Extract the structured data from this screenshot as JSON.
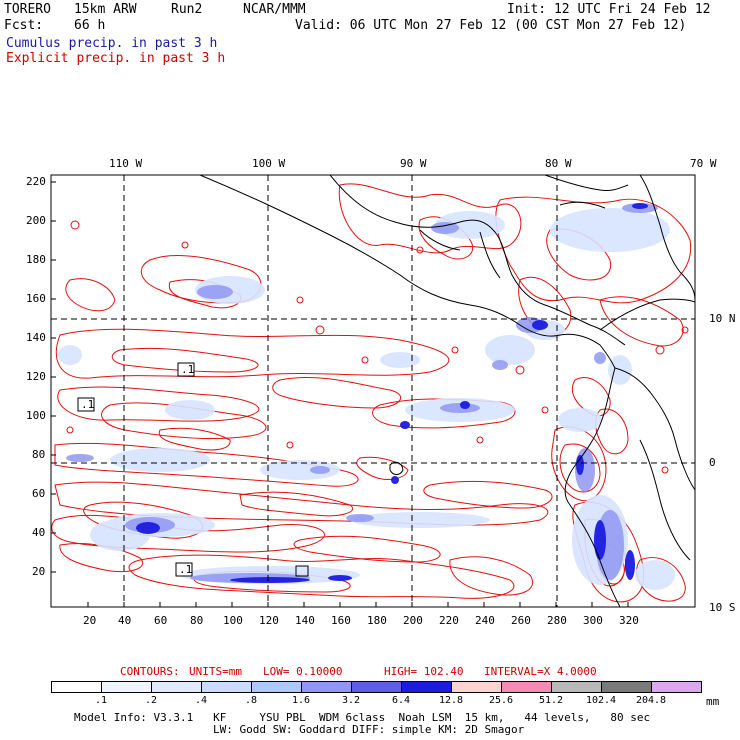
{
  "header": {
    "model": "TORERO",
    "resolution": "15km ARW",
    "run": "Run2",
    "org": "NCAR/MMM",
    "init_label": "Init: 12 UTC Fri 24 Feb 12",
    "fcst_label": "Fcst:",
    "fcst_value": "66 h",
    "valid_label": "Valid: 06 UTC Mon 27 Feb 12 (00 CST Mon 27 Feb 12)"
  },
  "legend": {
    "cumulus": "Cumulus precip. in past 3 h",
    "explicit": "Explicit precip. in past 3 h",
    "cumulus_color": "#1a1aa0",
    "explicit_color": "#cc0000"
  },
  "map": {
    "top_lon_labels": [
      "110 W",
      "100 W",
      "90 W",
      "80 W",
      "70 W"
    ],
    "right_lat_labels": [
      "10 N",
      "0",
      "10 S"
    ],
    "left_ticks": [
      "220",
      "200",
      "180",
      "160",
      "140",
      "120",
      "100",
      "80",
      "60",
      "40",
      "20"
    ],
    "bottom_ticks": [
      "20",
      "40",
      "60",
      "80",
      "100",
      "120",
      "140",
      "160",
      "180",
      "200",
      "220",
      "240",
      "260",
      "280",
      "300",
      "320"
    ],
    "box_labels": [
      ".1",
      ".1",
      ".1"
    ]
  },
  "contours": {
    "title": "CONTOURS:",
    "units": "UNITS=mm",
    "low": "LOW= 0.10000",
    "high": "HIGH= 102.40",
    "interval": "INTERVAL=X 4.0000"
  },
  "colorbar": {
    "labels": [
      ".1",
      ".2",
      ".4",
      ".8",
      "1.6",
      "3.2",
      "6.4",
      "12.8",
      "25.6",
      "51.2",
      "102.4",
      "204.8"
    ],
    "unit": "mm",
    "colors": [
      "#ffffff",
      "#f0f4ff",
      "#dfe9ff",
      "#c9dcff",
      "#aec8ff",
      "#8f97f2",
      "#5f5fe6",
      "#1c1ce0",
      "#ffd2d2",
      "#f28cb5",
      "#b8b8b8",
      "#7a7a7a",
      "#dca6f2"
    ]
  },
  "footer": {
    "line1": "Model Info: V3.3.1   KF     YSU PBL  WDM 6class  Noah LSM  15 km,   44 levels,   80 sec",
    "line2": "LW: Godd SW: Goddard DIFF: simple KM: 2D Smagor"
  }
}
